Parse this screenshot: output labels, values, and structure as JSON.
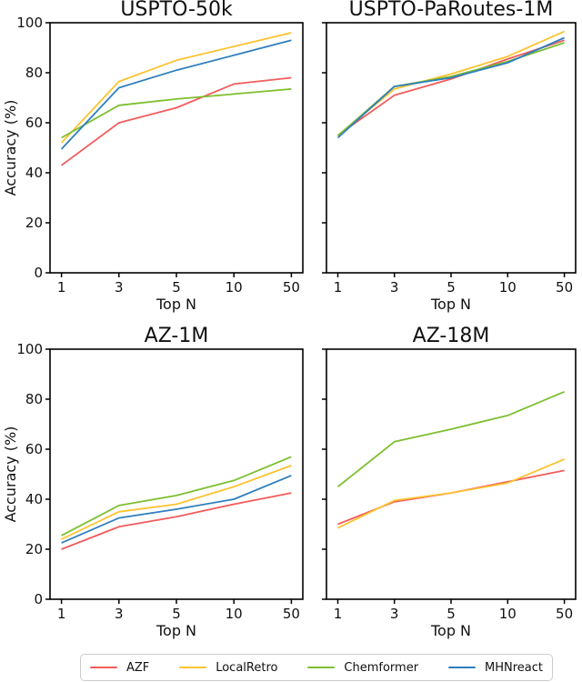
{
  "chart_data": [
    {
      "type": "line",
      "title": "USPTO-50k",
      "xlabel": "Top N",
      "ylabel": "Accuracy (%)",
      "categories": [
        "1",
        "3",
        "5",
        "10",
        "50"
      ],
      "ylim": [
        0,
        100
      ],
      "y_ticks": [
        0,
        20,
        40,
        60,
        80,
        100
      ],
      "show_y_tick_labels": true,
      "grid": false,
      "series": [
        {
          "name": "AZF",
          "color": "#f25c5c",
          "values": [
            43,
            60,
            66,
            75.5,
            78
          ]
        },
        {
          "name": "LocalRetro",
          "color": "#fcc330",
          "values": [
            52,
            76.5,
            85,
            90.5,
            96
          ]
        },
        {
          "name": "Chemformer",
          "color": "#7dbf2f",
          "values": [
            54,
            67,
            69.5,
            71.5,
            73.5
          ]
        },
        {
          "name": "MHNreact",
          "color": "#2f7fbe",
          "values": [
            49.5,
            74,
            81,
            87,
            93
          ]
        }
      ]
    },
    {
      "type": "line",
      "title": "USPTO-PaRoutes-1M",
      "xlabel": "Top N",
      "ylabel": "",
      "categories": [
        "1",
        "3",
        "5",
        "10",
        "50"
      ],
      "ylim": [
        0,
        100
      ],
      "y_ticks": [
        0,
        20,
        40,
        60,
        80,
        100
      ],
      "show_y_tick_labels": false,
      "grid": false,
      "series": [
        {
          "name": "AZF",
          "color": "#f25c5c",
          "values": [
            55,
            71,
            77.5,
            85.5,
            93
          ]
        },
        {
          "name": "LocalRetro",
          "color": "#fcc330",
          "values": [
            55,
            73.5,
            79.5,
            86.5,
            96.5
          ]
        },
        {
          "name": "Chemformer",
          "color": "#7dbf2f",
          "values": [
            54.8,
            74.5,
            78.5,
            84.5,
            92
          ]
        },
        {
          "name": "MHNreact",
          "color": "#2f7fbe",
          "values": [
            54,
            74.5,
            78,
            84,
            94
          ]
        }
      ]
    },
    {
      "type": "line",
      "title": "AZ-1M",
      "xlabel": "Top N",
      "ylabel": "Accuracy (%)",
      "categories": [
        "1",
        "3",
        "5",
        "10",
        "50"
      ],
      "ylim": [
        0,
        100
      ],
      "y_ticks": [
        0,
        20,
        40,
        60,
        80,
        100
      ],
      "show_y_tick_labels": true,
      "grid": false,
      "series": [
        {
          "name": "AZF",
          "color": "#f25c5c",
          "values": [
            20,
            29,
            33,
            38,
            42.5
          ]
        },
        {
          "name": "LocalRetro",
          "color": "#fcc330",
          "values": [
            24,
            35,
            38,
            45,
            53.5
          ]
        },
        {
          "name": "Chemformer",
          "color": "#7dbf2f",
          "values": [
            25.5,
            37.5,
            41.5,
            47.5,
            57
          ]
        },
        {
          "name": "MHNreact",
          "color": "#2f7fbe",
          "values": [
            22.5,
            32.5,
            36,
            40,
            49.5
          ]
        }
      ]
    },
    {
      "type": "line",
      "title": "AZ-18M",
      "xlabel": "Top N",
      "ylabel": "",
      "categories": [
        "1",
        "3",
        "5",
        "10",
        "50"
      ],
      "ylim": [
        0,
        100
      ],
      "y_ticks": [
        0,
        20,
        40,
        60,
        80,
        100
      ],
      "show_y_tick_labels": false,
      "grid": false,
      "series": [
        {
          "name": "AZF",
          "color": "#f25c5c",
          "values": [
            30,
            39,
            42.5,
            47,
            51.5
          ]
        },
        {
          "name": "LocalRetro",
          "color": "#fcc330",
          "values": [
            28.5,
            39.5,
            42.5,
            46.5,
            56
          ]
        },
        {
          "name": "Chemformer",
          "color": "#7dbf2f",
          "values": [
            45,
            63,
            68,
            73.5,
            83
          ]
        }
      ]
    }
  ],
  "legend": {
    "position": "bottom",
    "items": [
      {
        "label": "AZF",
        "color": "#f25c5c"
      },
      {
        "label": "LocalRetro",
        "color": "#fcc330"
      },
      {
        "label": "Chemformer",
        "color": "#7dbf2f"
      },
      {
        "label": "MHNreact",
        "color": "#2f7fbe"
      }
    ]
  },
  "style": {
    "axes_color": "#000000",
    "text_color": "#111111",
    "background": "#ffffff",
    "legend_border": "#cccccc"
  }
}
